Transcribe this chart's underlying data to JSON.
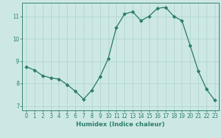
{
  "xlabel": "Humidex (Indice chaleur)",
  "ylabel": "",
  "x_values": [
    0,
    1,
    2,
    3,
    4,
    5,
    6,
    7,
    8,
    9,
    10,
    11,
    12,
    13,
    14,
    15,
    16,
    17,
    18,
    19,
    20,
    21,
    22,
    23
  ],
  "y_values": [
    8.75,
    8.6,
    8.35,
    8.25,
    8.2,
    7.95,
    7.65,
    7.3,
    7.7,
    8.3,
    9.1,
    10.5,
    11.1,
    11.2,
    10.8,
    11.0,
    11.35,
    11.4,
    11.0,
    10.8,
    9.7,
    8.55,
    7.75,
    7.25
  ],
  "line_color": "#2d7d6e",
  "marker": "D",
  "marker_size": 2.5,
  "bg_color": "#cde8e4",
  "plot_bg_color": "#cde8e4",
  "grid_color": "#aed4ce",
  "ylim": [
    6.8,
    11.6
  ],
  "yticks": [
    7,
    8,
    9,
    10,
    11
  ],
  "xlim": [
    -0.5,
    23.5
  ],
  "label_color": "#2d7d6e",
  "tick_color": "#2d7d6e",
  "axis_color": "#2d7d6e",
  "font_size_label": 6.5,
  "font_size_tick": 5.5,
  "line_width": 1.0
}
